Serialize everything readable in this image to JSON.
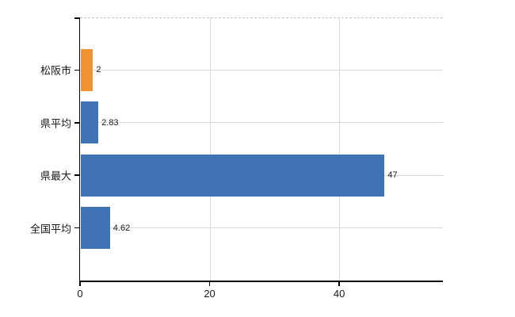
{
  "chart_data": {
    "type": "bar",
    "orientation": "horizontal",
    "title": "",
    "xlabel": "",
    "ylabel": "",
    "categories": [
      "松阪市",
      "県平均",
      "県最大",
      "全国平均"
    ],
    "values": [
      2,
      2.83,
      47,
      4.62
    ],
    "value_labels": [
      "2",
      "2.83",
      "47",
      "4.62"
    ],
    "bar_colors": [
      "#ef9231",
      "#4173b4",
      "#4173b4",
      "#4173b4"
    ],
    "xlim": [
      0,
      56
    ],
    "x_ticks": [
      {
        "value": 0,
        "label": "0"
      },
      {
        "value": 20,
        "label": "20"
      },
      {
        "value": 40,
        "label": "40"
      }
    ],
    "grid": true,
    "legend": null,
    "colors": {
      "orange_bar": "#ef9231",
      "blue_bar": "#4173b4",
      "gridline": "#d9d9d9",
      "axis": "#000000",
      "text": "#1a1a1a",
      "top_border": "#c8c8c8",
      "background": "#ffffff"
    }
  }
}
